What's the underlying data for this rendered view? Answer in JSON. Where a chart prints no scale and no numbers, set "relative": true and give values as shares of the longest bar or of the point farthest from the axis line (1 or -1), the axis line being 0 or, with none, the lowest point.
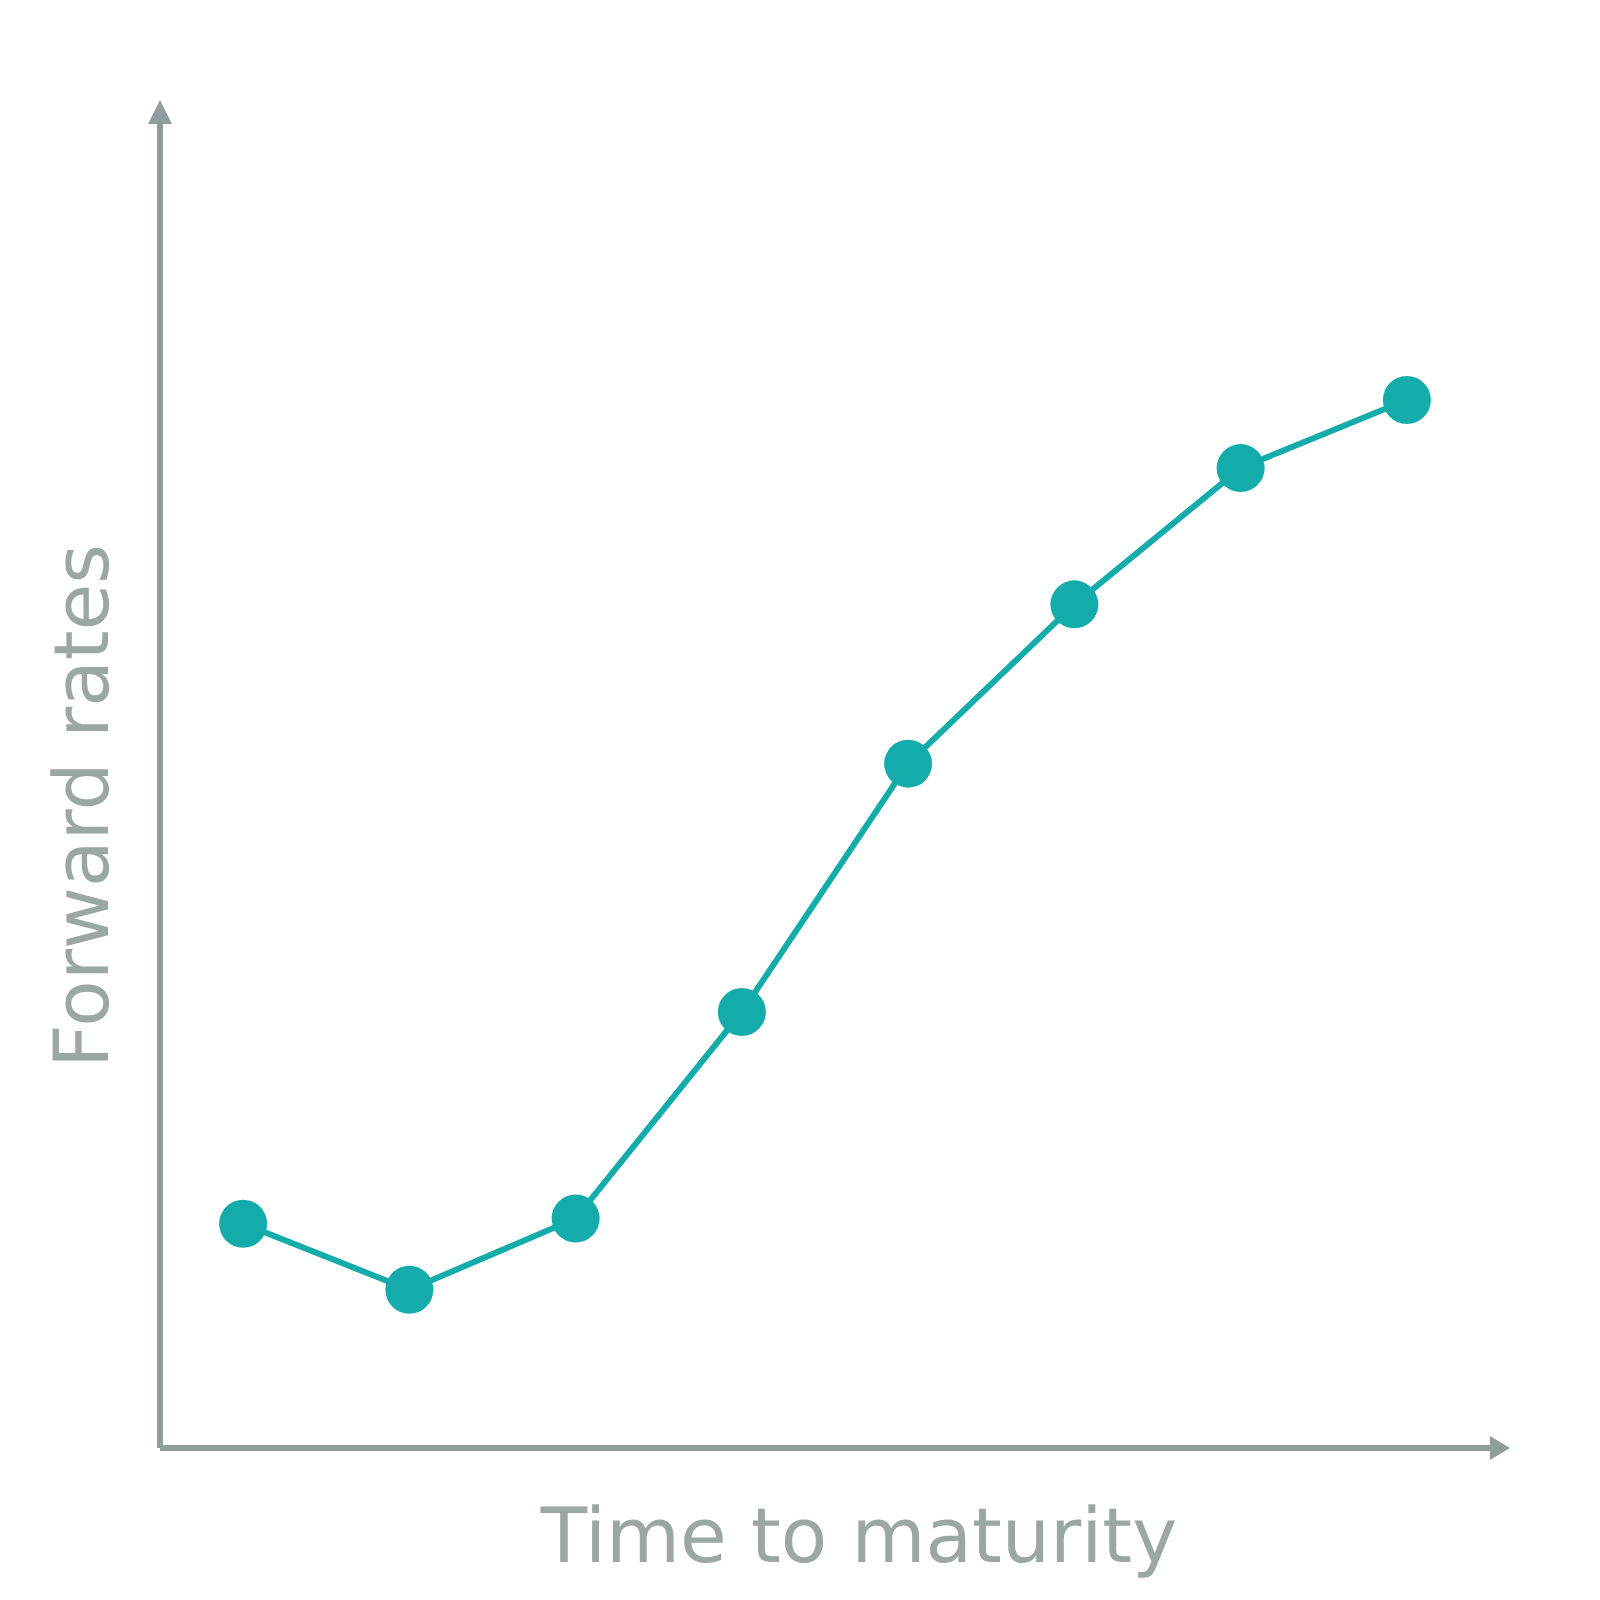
{
  "chart_data": {
    "type": "line",
    "xlabel": "Time to maturity",
    "ylabel": "Forward rates",
    "relative": true,
    "categories": [
      null,
      null,
      null,
      null,
      null,
      null,
      null,
      null
    ],
    "marker": "circle",
    "line_style": "solid",
    "series": [
      {
        "color": "#14abab",
        "values": [
          0.214,
          0.151,
          0.219,
          0.416,
          0.653,
          0.805,
          0.935,
          1
        ]
      }
    ]
  }
}
